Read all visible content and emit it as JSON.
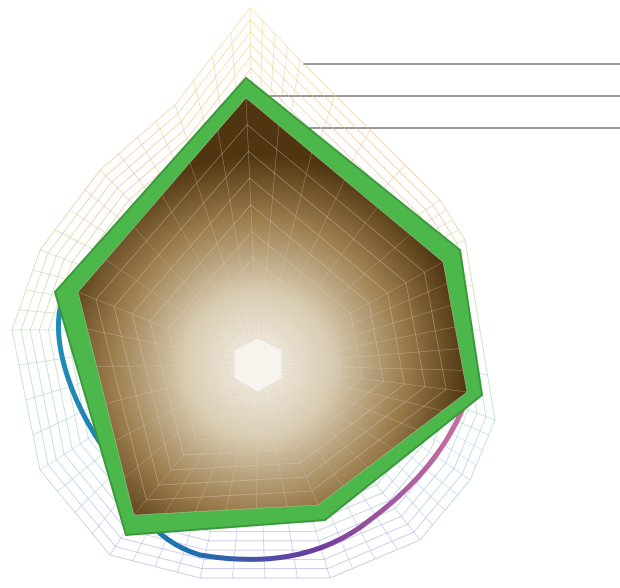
{
  "figure": {
    "description_visible_text": [],
    "layers": [
      {
        "id": "outer-wireframe-shell",
        "style": "pastel rainbow mesh",
        "colors": [
          "#f1d98a",
          "#f0b98e",
          "#e79ab5",
          "#c9a7db",
          "#a9c4e6",
          "#9fd6cf",
          "#bfe3a4",
          "#d9e7a0"
        ]
      },
      {
        "id": "middle-colored-tube",
        "colors": [
          "#2aa3c8",
          "#1a7fb6",
          "#3b4fa8",
          "#7a3fa0",
          "#c2418c",
          "#d76d8e"
        ]
      },
      {
        "id": "green-pentagon-band",
        "colors": [
          "#3a9a3a",
          "#56c456",
          "#2e7d32"
        ]
      },
      {
        "id": "inner-shaded-pentagon",
        "colors": [
          "#5a3d12",
          "#8a6a3a",
          "#c9b896",
          "#f4efe6"
        ]
      }
    ],
    "callout_lines": 3
  }
}
